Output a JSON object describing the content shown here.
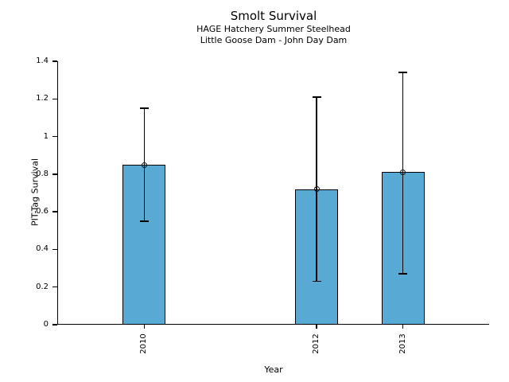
{
  "chart_data": {
    "type": "bar",
    "title": "Smolt Survival",
    "subtitle_line1": "HAGE Hatchery Summer Steelhead",
    "subtitle_line2": "Little Goose Dam - John Day Dam",
    "xlabel": "Year",
    "ylabel": "PIT-Tag Survival",
    "categories": [
      "2010",
      "2012",
      "2013"
    ],
    "x_values": [
      2010,
      2012,
      2013
    ],
    "values": [
      0.85,
      0.72,
      0.81
    ],
    "error_low": [
      0.55,
      0.23,
      0.27
    ],
    "error_high": [
      1.15,
      1.21,
      1.34
    ],
    "marker": "open-circle",
    "bar_width_years": 0.5,
    "xlim": [
      2009,
      2014
    ],
    "ylim": [
      0,
      1.4
    ],
    "yticks": [
      0,
      0.2,
      0.4,
      0.6,
      0.8,
      1,
      1.2,
      1.4
    ],
    "ytick_labels": [
      "0",
      "0.2",
      "0.4",
      "0.6",
      "0.8",
      "1",
      "1.2",
      "1.4"
    ],
    "grid": false,
    "legend": null,
    "colors": {
      "bar_fill": "#58a9d4",
      "bar_edge": "#000000",
      "error_bar": "#000000",
      "text": "#000000",
      "background": "#ffffff"
    }
  }
}
